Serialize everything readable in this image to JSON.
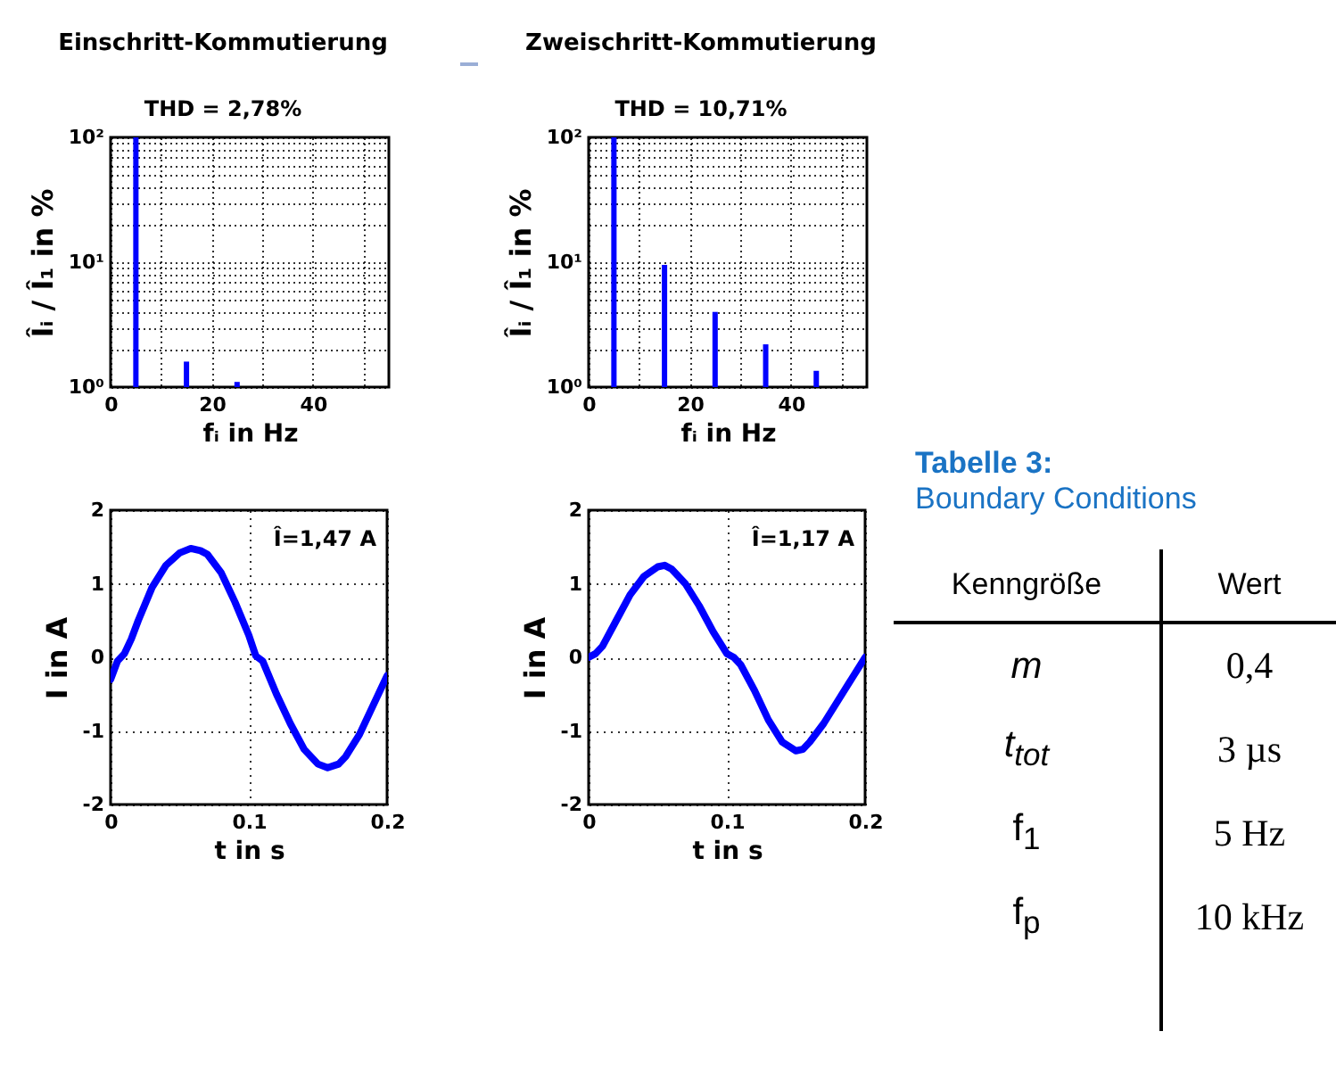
{
  "chart_data": [
    {
      "type": "bar",
      "title": "Einschritt-Kommutierung",
      "subtitle": "THD = 2,78%",
      "x": [
        5,
        15,
        25
      ],
      "values": [
        100,
        1.6,
        1.1
      ],
      "color": "#0000ff",
      "xlabel": "fᵢ in Hz",
      "ylabel": "Îᵢ / Î₁ in %",
      "xlim": [
        0,
        55
      ],
      "xticks": [
        0,
        {
          "value": 10,
          "label": null
        },
        20,
        {
          "value": 30,
          "label": null
        },
        40,
        {
          "value": 50,
          "label": null
        }
      ],
      "ylim": [
        1,
        100
      ],
      "yticks": [
        {
          "value": 1,
          "label": "10⁰"
        },
        {
          "value": 2,
          "label": null
        },
        {
          "value": 3,
          "label": null
        },
        {
          "value": 4,
          "label": null
        },
        {
          "value": 5,
          "label": null
        },
        {
          "value": 6,
          "label": null
        },
        {
          "value": 7,
          "label": null
        },
        {
          "value": 8,
          "label": null
        },
        {
          "value": 9,
          "label": null
        },
        {
          "value": 10,
          "label": "10¹"
        },
        {
          "value": 20,
          "label": null
        },
        {
          "value": 30,
          "label": null
        },
        {
          "value": 40,
          "label": null
        },
        {
          "value": 50,
          "label": null
        },
        {
          "value": 60,
          "label": null
        },
        {
          "value": 70,
          "label": null
        },
        {
          "value": 80,
          "label": null
        },
        {
          "value": 90,
          "label": null
        },
        {
          "value": 100,
          "label": "10²"
        }
      ],
      "log": true,
      "grid": true
    },
    {
      "type": "bar",
      "title": "Zweischritt-Kommutierung",
      "subtitle": "THD = 10,71%",
      "x": [
        5,
        15,
        25,
        35,
        45
      ],
      "values": [
        100,
        9.5,
        4.0,
        2.2,
        1.35
      ],
      "color": "#0000ff",
      "xlabel": "fᵢ in Hz",
      "ylabel": "Îᵢ / Î₁ in %",
      "xlim": [
        0,
        55
      ],
      "xticks": [
        0,
        {
          "value": 10,
          "label": null
        },
        20,
        {
          "value": 30,
          "label": null
        },
        40,
        {
          "value": 50,
          "label": null
        }
      ],
      "ylim": [
        1,
        100
      ],
      "yticks": [
        {
          "value": 1,
          "label": "10⁰"
        },
        {
          "value": 2,
          "label": null
        },
        {
          "value": 3,
          "label": null
        },
        {
          "value": 4,
          "label": null
        },
        {
          "value": 5,
          "label": null
        },
        {
          "value": 6,
          "label": null
        },
        {
          "value": 7,
          "label": null
        },
        {
          "value": 8,
          "label": null
        },
        {
          "value": 9,
          "label": null
        },
        {
          "value": 10,
          "label": "10¹"
        },
        {
          "value": 20,
          "label": null
        },
        {
          "value": 30,
          "label": null
        },
        {
          "value": 40,
          "label": null
        },
        {
          "value": 50,
          "label": null
        },
        {
          "value": 60,
          "label": null
        },
        {
          "value": 70,
          "label": null
        },
        {
          "value": 80,
          "label": null
        },
        {
          "value": 90,
          "label": null
        },
        {
          "value": 100,
          "label": "10²"
        }
      ],
      "log": true,
      "grid": true
    },
    {
      "type": "line",
      "x": [
        0,
        0.005,
        0.01,
        0.015,
        0.02,
        0.03,
        0.04,
        0.05,
        0.058,
        0.065,
        0.07,
        0.08,
        0.09,
        0.1,
        0.105,
        0.11,
        0.12,
        0.13,
        0.14,
        0.15,
        0.157,
        0.165,
        0.17,
        0.18,
        0.19,
        0.2
      ],
      "values": [
        -0.3,
        -0.05,
        0.05,
        0.25,
        0.5,
        0.95,
        1.25,
        1.42,
        1.48,
        1.45,
        1.4,
        1.15,
        0.75,
        0.3,
        0.02,
        -0.05,
        -0.5,
        -0.9,
        -1.25,
        -1.45,
        -1.5,
        -1.45,
        -1.35,
        -1.05,
        -0.65,
        -0.25
      ],
      "color": "#0000ff",
      "xlabel": "t in s",
      "ylabel": "I in A",
      "xlim": [
        0,
        0.2
      ],
      "xticks": [
        0,
        0.1,
        0.2
      ],
      "ylim": [
        -2,
        2
      ],
      "yticks": [
        -2,
        -1,
        0,
        1,
        2
      ],
      "grid": true,
      "annotations": [
        "Î=1,47 A"
      ]
    },
    {
      "type": "line",
      "x": [
        0,
        0.005,
        0.01,
        0.02,
        0.03,
        0.04,
        0.05,
        0.055,
        0.06,
        0.07,
        0.08,
        0.09,
        0.1,
        0.105,
        0.11,
        0.12,
        0.13,
        0.14,
        0.15,
        0.155,
        0.16,
        0.17,
        0.18,
        0.19,
        0.2
      ],
      "values": [
        0.0,
        0.05,
        0.15,
        0.5,
        0.85,
        1.1,
        1.23,
        1.25,
        1.2,
        1.0,
        0.7,
        0.35,
        0.05,
        0.0,
        -0.1,
        -0.45,
        -0.85,
        -1.15,
        -1.27,
        -1.25,
        -1.15,
        -0.9,
        -0.6,
        -0.3,
        0.0
      ],
      "color": "#0000ff",
      "xlabel": "t in s",
      "ylabel": "I in A",
      "xlim": [
        0,
        0.2
      ],
      "xticks": [
        0,
        0.1,
        0.2
      ],
      "ylim": [
        -2,
        2
      ],
      "yticks": [
        -2,
        -1,
        0,
        1,
        2
      ],
      "grid": true,
      "annotations": [
        "Î=1,17 A"
      ]
    },
    {
      "type": "other",
      "title": "Tabelle 3:",
      "subtitle": "Boundary Conditions",
      "annotations": [
        "Kenngröße",
        "Wert",
        "m",
        "0,4",
        "t$_{tot}$",
        "3 µs",
        "f$_{1}$",
        "5 Hz",
        "f$_{p}$",
        "10 kHz"
      ]
    }
  ]
}
